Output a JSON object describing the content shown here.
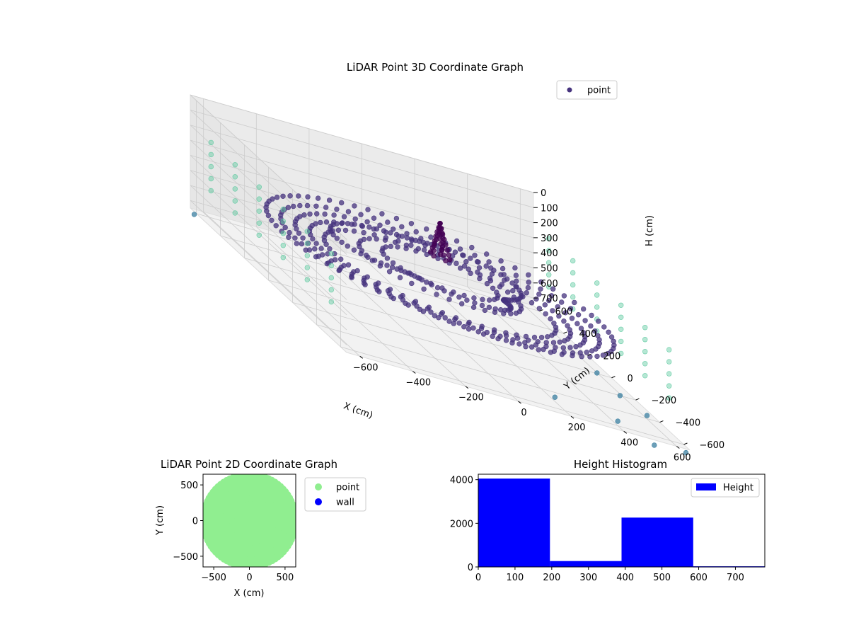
{
  "colors": {
    "viridis_dark": "#440154",
    "viridis_mid": "#3b528b",
    "viridis_teal": "#21918c",
    "viridis_light": "#5ec962",
    "point_2d": "#90ee90",
    "wall_2d": "#0000ff",
    "hist_bar": "#0000ff",
    "pane": "#f2f2f2",
    "grid": "#cccccc"
  },
  "chart_data": [
    {
      "type": "scatter",
      "title": "LiDAR Point 3D Coordinate Graph",
      "xlabel": "X (cm)",
      "ylabel": "Y (cm)",
      "zlabel": "H (cm)",
      "xticks": [
        "−600",
        "−400",
        "−200",
        "0",
        "200",
        "400",
        "600"
      ],
      "yticks": [
        "600",
        "400",
        "200",
        "0",
        "−200",
        "−400",
        "−600"
      ],
      "zticks": [
        "0",
        "100",
        "200",
        "300",
        "400",
        "500",
        "600",
        "700"
      ],
      "zinverted": true,
      "xlim": [
        -650,
        650
      ],
      "ylim": [
        -650,
        650
      ],
      "zlim": [
        0,
        750
      ],
      "legend": {
        "label": "point",
        "placement": "top-right"
      },
      "grid": true,
      "rings": [
        {
          "r": 600,
          "h": 400,
          "n": 72
        },
        {
          "r": 550,
          "h": 420,
          "n": 68
        },
        {
          "r": 500,
          "h": 430,
          "n": 64
        },
        {
          "r": 450,
          "h": 440,
          "n": 60
        },
        {
          "r": 400,
          "h": 450,
          "n": 54
        },
        {
          "r": 280,
          "h": 400,
          "n": 40
        },
        {
          "r": 200,
          "h": 380,
          "n": 32
        }
      ],
      "walls": [
        {
          "x": -640,
          "yfrom": -500,
          "yto": 500,
          "hs": [
            200,
            280,
            360,
            440,
            520
          ]
        },
        {
          "x": 640,
          "yfrom": -500,
          "yto": 500,
          "hs": [
            200,
            280,
            360,
            440,
            520
          ]
        }
      ],
      "center_cluster": {
        "x": 0,
        "y": 0,
        "h_top": 50,
        "h_bottom": 300
      },
      "outliers": [
        {
          "x": -640,
          "y": 640,
          "h": 780
        },
        {
          "x": 180,
          "y": -560,
          "h": 700
        },
        {
          "x": 600,
          "y": -180,
          "h": 760
        },
        {
          "x": 590,
          "y": -10,
          "h": 740
        },
        {
          "x": 400,
          "y": -600,
          "h": 720
        },
        {
          "x": 620,
          "y": -360,
          "h": 750
        },
        {
          "x": 640,
          "y": -640,
          "h": 780
        },
        {
          "x": 520,
          "y": -640,
          "h": 790
        }
      ]
    },
    {
      "type": "scatter",
      "title": "LiDAR Point 2D Coordinate Graph",
      "xlabel": "X (cm)",
      "ylabel": "Y (cm)",
      "xticks": [
        -500,
        0,
        500
      ],
      "yticks": [
        -500,
        0,
        500
      ],
      "xlim": [
        -650,
        650
      ],
      "ylim": [
        -650,
        650
      ],
      "series": [
        {
          "name": "point",
          "disc_radius": 640
        },
        {
          "name": "wall",
          "count": 0
        }
      ],
      "legend": {
        "placement": "outside-right"
      }
    },
    {
      "type": "bar",
      "title": "Height Histogram",
      "bins": [
        {
          "from": 0,
          "to": 195,
          "value": 4050
        },
        {
          "from": 195,
          "to": 390,
          "value": 270
        },
        {
          "from": 390,
          "to": 585,
          "value": 2260
        },
        {
          "from": 585,
          "to": 780,
          "value": 30
        }
      ],
      "xticks": [
        0,
        100,
        200,
        300,
        400,
        500,
        600,
        700
      ],
      "yticks": [
        0,
        2000,
        4000
      ],
      "xlim": [
        0,
        780
      ],
      "ylim": [
        0,
        4250
      ],
      "legend": {
        "label": "Height",
        "placement": "top-right"
      }
    }
  ]
}
